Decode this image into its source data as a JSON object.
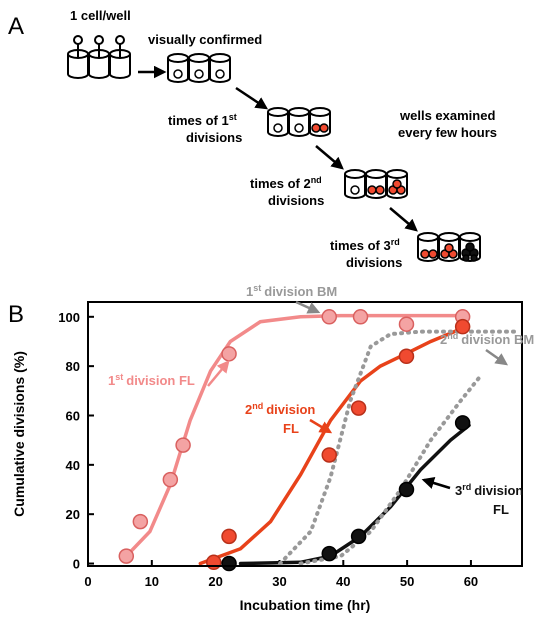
{
  "panel_a": {
    "label": "A",
    "single_cell": "1 cell/well",
    "confirmed": "visually confirmed",
    "first": {
      "text": "times of 1",
      "sup": "st",
      "line2": "divisions"
    },
    "second": {
      "text": "times of 2",
      "sup": "nd",
      "line2": "divisions"
    },
    "third": {
      "text": "times of 3",
      "sup": "rd",
      "line2": "divisions"
    },
    "note": [
      "wells examined",
      "every few hours"
    ]
  },
  "chart_data": {
    "type": "scatter",
    "panel_label": "B",
    "xlabel": "Incubation time (hr)",
    "ylabel": "Cumulative divisions (%)",
    "xlim": [
      0,
      68
    ],
    "ylim": [
      -1,
      106
    ],
    "xticks": [
      0,
      10,
      20,
      30,
      40,
      50,
      60
    ],
    "yticks": [
      0,
      20,
      40,
      60,
      80,
      100
    ],
    "series": [
      {
        "color": "#f4a3a3",
        "edge": "#d9605f",
        "x": [
          6,
          8.2,
          12.9,
          14.9,
          22.1,
          37.8,
          42.7,
          49.9,
          58.7
        ],
        "values": [
          3,
          17,
          34,
          48,
          85,
          100,
          100,
          97,
          100
        ]
      },
      {
        "color": "#f04a30",
        "edge": "#b8301a",
        "x": [
          19.7,
          22.1,
          37.8,
          42.4,
          49.9,
          58.7
        ],
        "values": [
          0.5,
          11,
          44,
          63,
          84,
          96
        ]
      },
      {
        "color": "#111111",
        "edge": "#000000",
        "x": [
          22.1,
          37.8,
          42.4,
          49.9,
          58.7
        ],
        "values": [
          0,
          4,
          11,
          30,
          57
        ]
      }
    ],
    "curves": [
      {
        "color": "#f28a8a",
        "dashed": false,
        "x": [
          6,
          9.7,
          12.9,
          16,
          19.2,
          22.3,
          27,
          33.3,
          39.6,
          59.3
        ],
        "values": [
          3,
          13,
          32,
          58,
          78,
          90,
          98,
          100,
          100.5,
          100.5
        ]
      },
      {
        "color": "#e8421a",
        "dashed": false,
        "x": [
          17.6,
          23.9,
          28.6,
          33.3,
          38,
          42.7,
          45.8,
          49,
          53.7,
          59.3
        ],
        "values": [
          0,
          6,
          17,
          36,
          58,
          74,
          80,
          84,
          90,
          96
        ]
      },
      {
        "color": "#111111",
        "dashed": false,
        "x": [
          23.9,
          33.3,
          38,
          42.7,
          47.4,
          52.1,
          56.8,
          59.7
        ],
        "values": [
          0,
          0.5,
          3,
          11,
          23,
          38,
          50,
          56
        ]
      },
      {
        "color": "#999999",
        "dashed": true,
        "x": [
          30.1,
          34.9,
          38,
          41.1,
          44.3,
          47.4,
          52.1,
          61.5,
          67
        ],
        "values": [
          0,
          13,
          35,
          66,
          88,
          93,
          94,
          94,
          94
        ]
      },
      {
        "color": "#999999",
        "dashed": true,
        "x": [
          33.3,
          39.6,
          44.3,
          49,
          53.7,
          58.4,
          61.5
        ],
        "values": [
          0,
          3,
          13,
          30,
          50,
          66,
          76
        ]
      }
    ],
    "annotations": [
      {
        "text": "1",
        "sup": "st",
        "rest": "division  FL",
        "color": "#f28a8a"
      },
      {
        "text": "1",
        "sup": "st",
        "rest": "division  BM",
        "color": "#999999"
      },
      {
        "text": "2",
        "sup": "nd",
        "rest": "division",
        "line2": "FL",
        "color": "#e8421a"
      },
      {
        "text": "2",
        "sup": "nd",
        "rest": "division  BM",
        "color": "#999999"
      },
      {
        "text": "3",
        "sup": "rd",
        "rest": "division",
        "line2": "FL",
        "color": "#111111"
      }
    ]
  }
}
